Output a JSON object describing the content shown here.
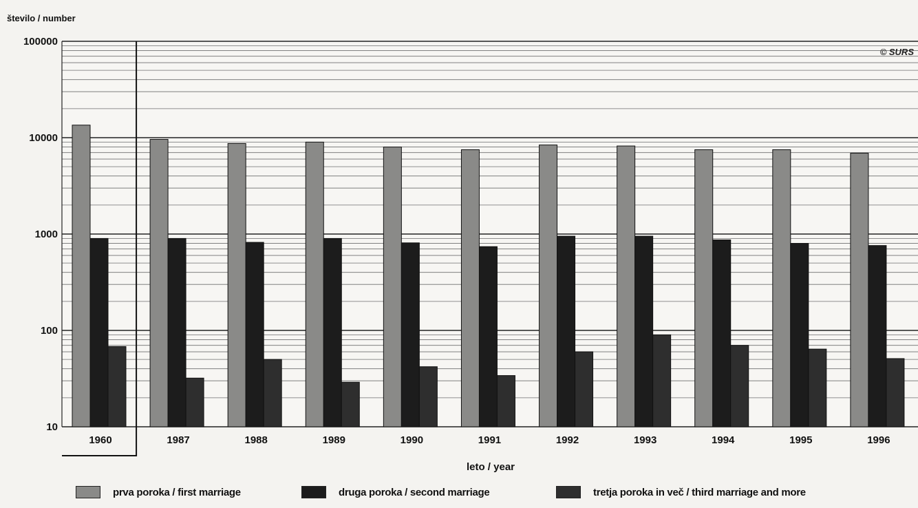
{
  "chart_data": {
    "type": "bar",
    "ylabel": "število / number",
    "xlabel": "leto / year",
    "copyright": "© SURS",
    "y_scale": "log",
    "ylim": [
      10,
      100000
    ],
    "y_ticks": [
      "100000",
      "10000",
      "1000",
      "100",
      "10"
    ],
    "categories": [
      "1960",
      "1987",
      "1988",
      "1989",
      "1990",
      "1991",
      "1992",
      "1993",
      "1994",
      "1995",
      "1996"
    ],
    "series": [
      {
        "name": "prva poroka / first marriage",
        "color": "#8a8a88",
        "values": [
          13500,
          9600,
          8700,
          9000,
          8000,
          7500,
          8400,
          8200,
          7500,
          7500,
          6900
        ]
      },
      {
        "name": "druga poroka / second marriage",
        "color": "#1c1c1c",
        "values": [
          900,
          900,
          820,
          900,
          810,
          740,
          950,
          950,
          870,
          800,
          760
        ]
      },
      {
        "name": "tretja poroka in več / third marriage and more",
        "color": "#2e2e2e",
        "values": [
          68,
          32,
          50,
          29,
          42,
          34,
          60,
          90,
          70,
          64,
          51
        ]
      }
    ],
    "grid": true,
    "legend_position": "bottom"
  }
}
